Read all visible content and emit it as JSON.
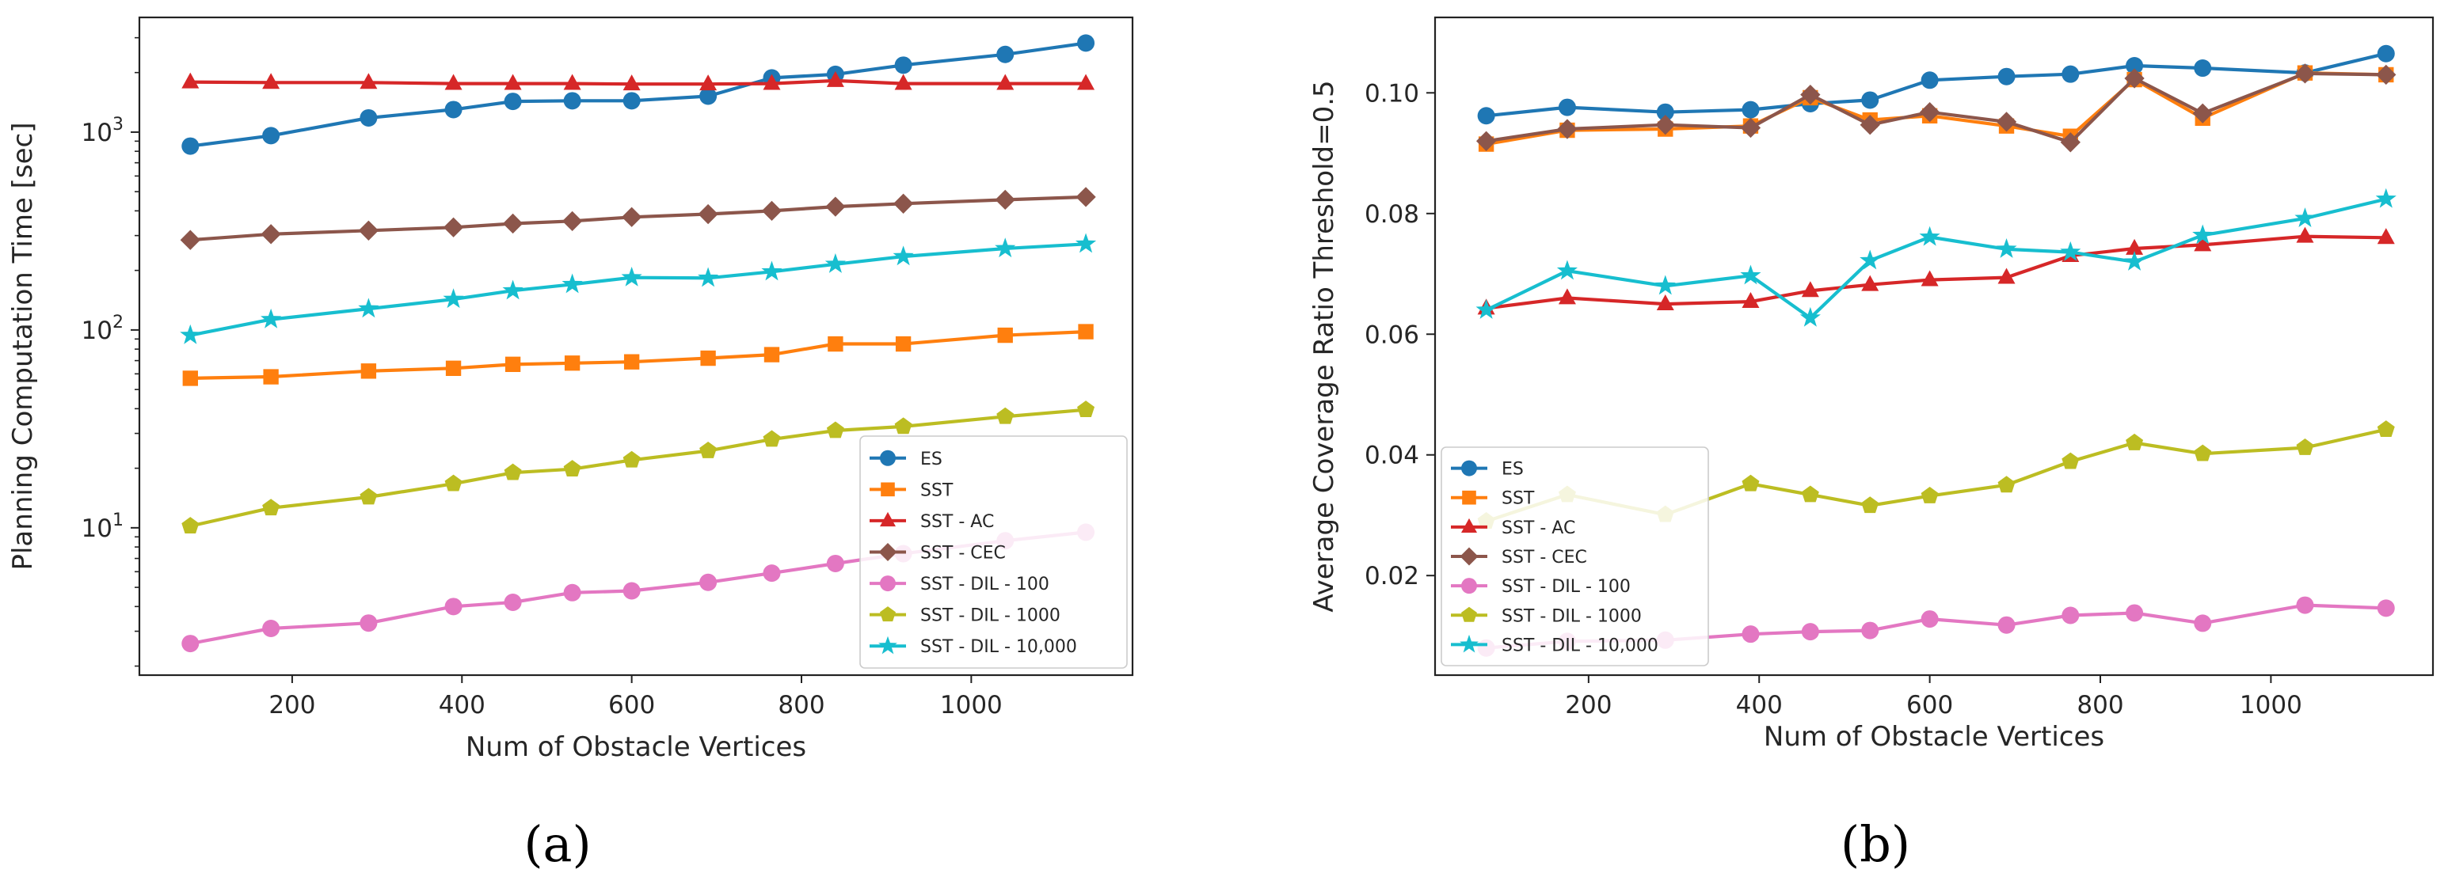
{
  "figure": {
    "captions": [
      "(a)",
      "(b)"
    ]
  },
  "chart_data": [
    {
      "type": "line",
      "id": "a",
      "caption": "(a)",
      "title": "",
      "xlabel": "Num of Obstacle Vertices",
      "ylabel": "Planning Computation Time [sec]",
      "yscale": "log",
      "xlim": [
        20,
        1190
      ],
      "ylim": [
        1.8,
        3800
      ],
      "xticks": [
        200,
        400,
        600,
        800,
        1000
      ],
      "xtick_labels": [
        "200",
        "400",
        "600",
        "800",
        "1000"
      ],
      "yticks": [
        10,
        100,
        1000
      ],
      "ytick_labels": [
        "10",
        "10",
        "10"
      ],
      "ytick_exponents": [
        "1",
        "2",
        "3"
      ],
      "legend_position": "lower-right",
      "grid": false,
      "x": [
        80,
        175,
        290,
        390,
        460,
        530,
        600,
        690,
        765,
        840,
        920,
        1040,
        1135
      ],
      "series": [
        {
          "name": "ES",
          "color": "#1f77b4",
          "marker": "circle",
          "values": [
            850,
            960,
            1180,
            1300,
            1430,
            1440,
            1440,
            1520,
            1880,
            1960,
            2180,
            2470,
            2820
          ]
        },
        {
          "name": "SST",
          "color": "#ff7f0e",
          "marker": "square",
          "values": [
            57,
            58,
            62,
            64,
            67,
            68,
            69,
            72,
            75,
            85,
            85,
            94,
            98
          ]
        },
        {
          "name": "SST - AC",
          "color": "#d62728",
          "marker": "triangle",
          "values": [
            1790,
            1780,
            1780,
            1760,
            1760,
            1760,
            1750,
            1750,
            1760,
            1820,
            1760,
            1760,
            1760
          ]
        },
        {
          "name": "SST - CEC",
          "color": "#8c564b",
          "marker": "diamond",
          "values": [
            285,
            305,
            318,
            330,
            345,
            355,
            372,
            385,
            400,
            420,
            435,
            455,
            470
          ]
        },
        {
          "name": "SST - DIL - 100",
          "color": "#e377c2",
          "marker": "circle",
          "values": [
            2.6,
            3.1,
            3.3,
            4.0,
            4.2,
            4.7,
            4.8,
            5.3,
            5.9,
            6.6,
            7.4,
            8.6,
            9.5
          ]
        },
        {
          "name": "SST - DIL - 1000",
          "color": "#bcbd22",
          "marker": "pentagon",
          "values": [
            10.2,
            12.6,
            14.3,
            16.7,
            19.0,
            19.8,
            22.0,
            24.5,
            28.0,
            31.0,
            32.5,
            36.5,
            39.5
          ]
        },
        {
          "name": "SST - DIL - 10,000",
          "color": "#17becf",
          "marker": "star",
          "values": [
            94,
            113,
            128,
            143,
            158,
            170,
            184,
            183,
            197,
            215,
            235,
            258,
            272
          ]
        }
      ]
    },
    {
      "type": "line",
      "id": "b",
      "caption": "(b)",
      "title": "",
      "xlabel": "Num of Obstacle Vertices",
      "ylabel": "Average Coverage Ratio Threshold=0.5",
      "yscale": "linear",
      "xlim": [
        20,
        1190
      ],
      "ylim": [
        0.0035,
        0.1125
      ],
      "xticks": [
        200,
        400,
        600,
        800,
        1000
      ],
      "xtick_labels": [
        "200",
        "400",
        "600",
        "800",
        "1000"
      ],
      "yticks": [
        0.02,
        0.04,
        0.06,
        0.08,
        0.1
      ],
      "ytick_labels": [
        "0.02",
        "0.04",
        "0.06",
        "0.08",
        "0.10"
      ],
      "legend_position": "lower-left",
      "grid": false,
      "x": [
        80,
        175,
        290,
        390,
        460,
        530,
        600,
        690,
        765,
        840,
        920,
        1040,
        1135
      ],
      "series": [
        {
          "name": "ES",
          "color": "#1f77b4",
          "marker": "circle",
          "values": [
            0.0962,
            0.0976,
            0.0968,
            0.0972,
            0.0982,
            0.0988,
            0.1021,
            0.1027,
            0.1031,
            0.1045,
            0.1041,
            0.1033,
            0.1065
          ]
        },
        {
          "name": "SST",
          "color": "#ff7f0e",
          "marker": "square",
          "values": [
            0.0915,
            0.0938,
            0.094,
            0.0945,
            0.0992,
            0.0955,
            0.0962,
            0.0945,
            0.0928,
            0.1022,
            0.0958,
            0.1033,
            0.103
          ]
        },
        {
          "name": "SST - AC",
          "color": "#d62728",
          "marker": "triangle",
          "values": [
            0.0643,
            0.066,
            0.065,
            0.0654,
            0.0672,
            0.0682,
            0.069,
            0.0694,
            0.073,
            0.0742,
            0.0748,
            0.0762,
            0.076
          ]
        },
        {
          "name": "SST - CEC",
          "color": "#8c564b",
          "marker": "diamond",
          "values": [
            0.092,
            0.094,
            0.0947,
            0.0942,
            0.0997,
            0.0947,
            0.0968,
            0.0952,
            0.0918,
            0.1024,
            0.0966,
            0.1032,
            0.103
          ]
        },
        {
          "name": "SST - DIL - 100",
          "color": "#e377c2",
          "marker": "circle",
          "values": [
            0.008,
            0.0091,
            0.0093,
            0.0103,
            0.0107,
            0.0109,
            0.0128,
            0.0118,
            0.0134,
            0.0138,
            0.0121,
            0.0151,
            0.0146
          ]
        },
        {
          "name": "SST - DIL - 1000",
          "color": "#bcbd22",
          "marker": "pentagon",
          "values": [
            0.029,
            0.0334,
            0.0301,
            0.0352,
            0.0334,
            0.0316,
            0.0332,
            0.035,
            0.0389,
            0.042,
            0.0402,
            0.0412,
            0.0442
          ]
        },
        {
          "name": "SST - DIL - 10,000",
          "color": "#17becf",
          "marker": "star",
          "values": [
            0.064,
            0.0705,
            0.068,
            0.0697,
            0.0627,
            0.0722,
            0.0761,
            0.0741,
            0.0736,
            0.072,
            0.0764,
            0.0792,
            0.0824
          ]
        }
      ]
    }
  ]
}
